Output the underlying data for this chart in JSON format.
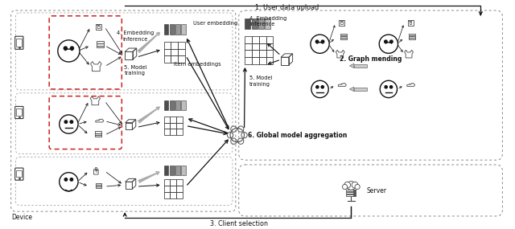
{
  "fig_width": 6.4,
  "fig_height": 2.85,
  "dpi": 100,
  "bg_color": "#ffffff",
  "labels": {
    "user_data_upload": "1. User data upload",
    "graph_mending": "2. Graph mending",
    "client_selection": "3. Client selection",
    "embedding_inference1": "4. Embedding\ninference",
    "model_training1": "5. Model\ntraining",
    "user_embedding": "User embedding",
    "item_embeddings": "Item embeddings",
    "embedding_inference2": "4. Embedding\ninference",
    "model_training2": "5. Model\ntraining",
    "global_aggregation": "6. Global model aggregation",
    "device_label": "Device",
    "server_label": "Server"
  },
  "colors": {
    "box_outline": "#888888",
    "red_dashed": "#cc2222",
    "arrow_dark": "#111111",
    "arrow_gray": "#aaaaaa",
    "text_dark": "#111111",
    "face_outline": "#111111",
    "embed_dark": "#555555",
    "embed_light": "#aaaaaa"
  }
}
